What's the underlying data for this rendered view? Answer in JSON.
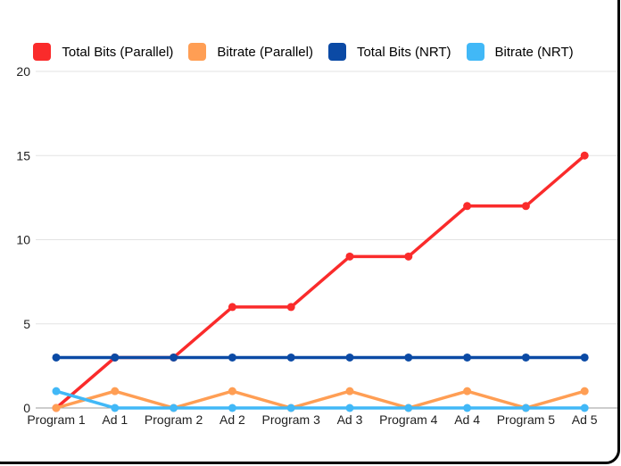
{
  "chart_data": {
    "type": "line",
    "title": "",
    "categories": [
      "Program 1",
      "Ad 1",
      "Program 2",
      "Ad 2",
      "Program 3",
      "Ad 3",
      "Program 4",
      "Ad 4",
      "Program 5",
      "Ad 5"
    ],
    "series": [
      {
        "name": "Total Bits (Parallel)",
        "color": "#fa2b2b",
        "values": [
          0,
          3,
          3,
          6,
          6,
          9,
          9,
          12,
          12,
          15
        ]
      },
      {
        "name": "Bitrate (Parallel)",
        "color": "#ff9e54",
        "values": [
          0,
          1,
          0,
          1,
          0,
          1,
          0,
          1,
          0,
          1
        ]
      },
      {
        "name": "Total Bits (NRT)",
        "color": "#0b4aa5",
        "values": [
          3,
          3,
          3,
          3,
          3,
          3,
          3,
          3,
          3,
          3
        ]
      },
      {
        "name": "Bitrate (NRT)",
        "color": "#41b8f7",
        "values": [
          1,
          0,
          0,
          0,
          0,
          0,
          0,
          0,
          0,
          0
        ]
      }
    ],
    "yticks": [
      0,
      5,
      10,
      15,
      20
    ],
    "ylim": [
      0,
      20
    ],
    "grid": true,
    "grid_color": "#e3e3e3",
    "zero_line_color": "#9b9b9b",
    "legend_position": "top",
    "frame_border_color": "#000000"
  }
}
